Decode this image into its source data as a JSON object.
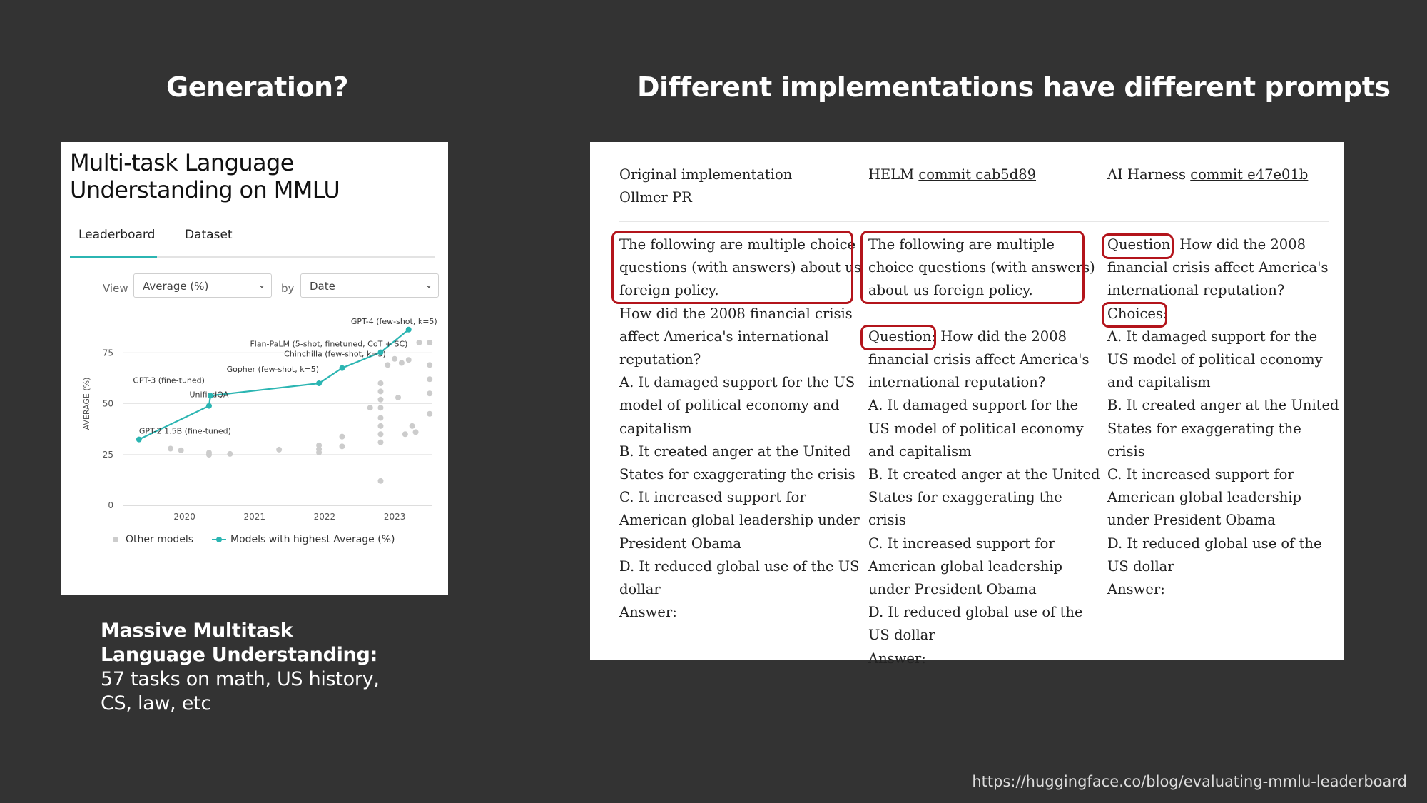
{
  "headings": {
    "left": "Generation?",
    "right": "Different implementations have different prompts"
  },
  "leaderboard": {
    "title": "Multi-task Language Understanding on MMLU",
    "tabs": [
      "Leaderboard",
      "Dataset"
    ],
    "active_tab": "Leaderboard",
    "view_label": "View",
    "view_value": "Average (%)",
    "by_label": "by",
    "by_value": "Date",
    "accent_color": "#2bb5b2"
  },
  "chart_data": {
    "type": "scatter",
    "ylabel": "AVERAGE (%)",
    "xlabel": "",
    "ylim": [
      0,
      100
    ],
    "xlim": [
      2019.25,
      2023.6
    ],
    "yticks": [
      0,
      25,
      50,
      75,
      100
    ],
    "xticks": [
      2020,
      2021,
      2022,
      2023
    ],
    "grid": true,
    "legend": [
      "Other models",
      "Models with highest Average (%)"
    ],
    "legend_position": "bottom",
    "series": [
      {
        "name": "Models with highest Average (%)",
        "color": "#2bb5b2",
        "points": [
          {
            "x": 2019.35,
            "y": 32.4,
            "label": "GPT-2 1.5B (fine-tuned)"
          },
          {
            "x": 2020.35,
            "y": 48.9,
            "label": "UnifiedQA"
          },
          {
            "x": 2020.37,
            "y": 53.9,
            "label": "GPT-3 (fine-tuned)"
          },
          {
            "x": 2021.92,
            "y": 60.0,
            "label": "Gopher (few-shot, k=5)"
          },
          {
            "x": 2022.25,
            "y": 67.5,
            "label": "Chinchilla (few-shot, k=5)"
          },
          {
            "x": 2022.8,
            "y": 75.2,
            "label": "Flan-PaLM (5-shot, finetuned, CoT + SC)"
          },
          {
            "x": 2023.2,
            "y": 86.4,
            "label": "GPT-4 (few-shot, k=5)"
          }
        ]
      },
      {
        "name": "Other models",
        "color": "#cccccc",
        "points": [
          {
            "x": 2019.8,
            "y": 27.9
          },
          {
            "x": 2019.95,
            "y": 27.1
          },
          {
            "x": 2020.35,
            "y": 25.9
          },
          {
            "x": 2020.35,
            "y": 24.9
          },
          {
            "x": 2020.65,
            "y": 25.3
          },
          {
            "x": 2021.35,
            "y": 27.4
          },
          {
            "x": 2021.92,
            "y": 29.5
          },
          {
            "x": 2021.92,
            "y": 27.6
          },
          {
            "x": 2021.92,
            "y": 26.0
          },
          {
            "x": 2022.25,
            "y": 33.8
          },
          {
            "x": 2022.25,
            "y": 29.0
          },
          {
            "x": 2022.65,
            "y": 48.0
          },
          {
            "x": 2022.8,
            "y": 60.0
          },
          {
            "x": 2022.8,
            "y": 56.0
          },
          {
            "x": 2022.8,
            "y": 52.0
          },
          {
            "x": 2022.8,
            "y": 48.0
          },
          {
            "x": 2022.8,
            "y": 43.0
          },
          {
            "x": 2022.8,
            "y": 39.0
          },
          {
            "x": 2022.8,
            "y": 35.0
          },
          {
            "x": 2022.8,
            "y": 31.0
          },
          {
            "x": 2022.8,
            "y": 12.0
          },
          {
            "x": 2022.9,
            "y": 69.0
          },
          {
            "x": 2023.0,
            "y": 72.0
          },
          {
            "x": 2023.05,
            "y": 53.0
          },
          {
            "x": 2023.1,
            "y": 70.0
          },
          {
            "x": 2023.15,
            "y": 35.0
          },
          {
            "x": 2023.2,
            "y": 71.5
          },
          {
            "x": 2023.25,
            "y": 39.0
          },
          {
            "x": 2023.3,
            "y": 36.0
          },
          {
            "x": 2023.35,
            "y": 80.0
          },
          {
            "x": 2023.5,
            "y": 69.0
          },
          {
            "x": 2023.5,
            "y": 62.0
          },
          {
            "x": 2023.5,
            "y": 55.0
          },
          {
            "x": 2023.5,
            "y": 45.0
          },
          {
            "x": 2023.5,
            "y": 80.0
          }
        ]
      }
    ]
  },
  "caption": {
    "bold": "Massive Multitask Language Understanding:",
    "rest": " 57 tasks on math, US history, CS, law, etc"
  },
  "prompts": {
    "columns": [
      {
        "head_prefix": "Original implementation ",
        "head_link": "Ollmer PR",
        "lines": [
          "The following are multiple choice",
          "questions (with answers) about us",
          "foreign policy.",
          "How did the 2008 financial crisis",
          "affect America's international",
          "reputation?",
          "A. It damaged support for the US",
          "model of political economy and",
          "capitalism",
          "B. It created anger at the United",
          "States for exaggerating the crisis",
          "C. It increased support for",
          "American global leadership under",
          "President Obama",
          "D. It reduced global use of the US",
          "dollar",
          "Answer:"
        ]
      },
      {
        "head_prefix": "HELM ",
        "head_link": "commit cab5d89",
        "lines": [
          "The following are multiple",
          "choice questions (with answers)",
          "about us foreign policy.",
          "",
          "Question: How did the 2008",
          "financial crisis affect America's",
          "international reputation?",
          "A. It damaged support for the",
          "US model of political economy",
          "and capitalism",
          "B. It created anger at the United",
          "States for exaggerating the crisis",
          "C. It increased support for",
          "American global leadership",
          "under President Obama",
          "D. It reduced global use of the",
          "US dollar",
          "Answer:"
        ]
      },
      {
        "head_prefix": "AI Harness ",
        "head_link": "commit e47e01b",
        "lines": [
          "Question: How did the 2008",
          "financial crisis affect America's",
          "international reputation?",
          "Choices:",
          "A. It damaged support for the",
          "US model of political economy",
          "and capitalism",
          "B. It created anger at the United",
          "States for exaggerating the crisis",
          "C. It increased support for",
          "American global leadership",
          "under President Obama",
          "D. It reduced global use of the",
          "US dollar",
          "Answer:"
        ]
      }
    ],
    "highlight_color": "#b3141b"
  },
  "source_url": "https://huggingface.co/blog/evaluating-mmlu-leaderboard"
}
